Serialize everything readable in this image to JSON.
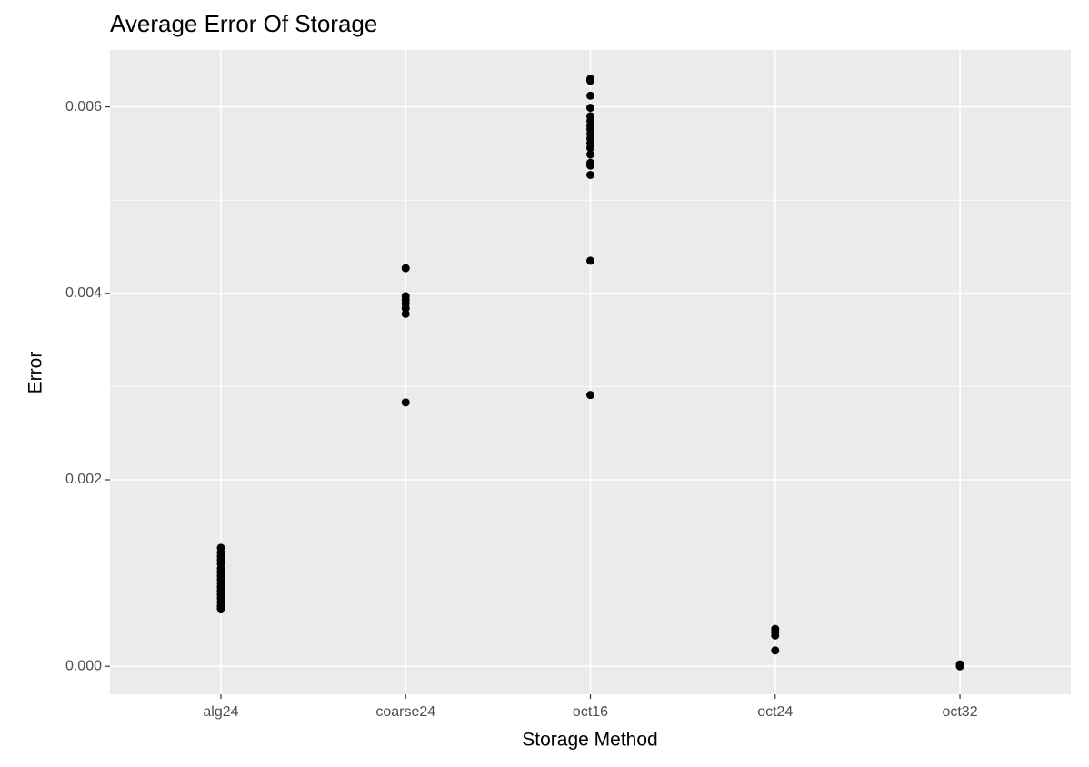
{
  "chart_data": {
    "type": "strip",
    "title": "Average Error Of Storage",
    "x_label": "Storage Method",
    "y_label": "Error",
    "categories": [
      "alg24",
      "coarse24",
      "oct16",
      "oct24",
      "oct32"
    ],
    "values": [
      [
        0.00127,
        0.00122,
        0.00118,
        0.00114,
        0.0011,
        0.00105,
        0.00101,
        0.00097,
        0.00093,
        0.00089,
        0.00085,
        0.00081,
        0.00077,
        0.00073,
        0.00069,
        0.00065,
        0.00062
      ],
      [
        0.00427,
        0.00397,
        0.00393,
        0.00389,
        0.00384,
        0.00378,
        0.00283
      ],
      [
        0.0063,
        0.00628,
        0.00612,
        0.00599,
        0.0059,
        0.00585,
        0.0058,
        0.00576,
        0.00571,
        0.00566,
        0.00561,
        0.00556,
        0.00549,
        0.0054,
        0.00537,
        0.00527,
        0.00435,
        0.00291
      ],
      [
        0.0004,
        0.00037,
        0.00033,
        0.00017
      ],
      [
        2e-05,
        0
      ]
    ],
    "color": "#000000",
    "ylim": [
      -0.0003,
      0.00661
    ],
    "yticks": [
      {
        "value": 0,
        "label": "0.000"
      },
      {
        "value": 0.002,
        "label": "0.002"
      },
      {
        "value": 0.004,
        "label": "0.004"
      },
      {
        "value": 0.006,
        "label": "0.006"
      }
    ],
    "minor_yticks": [
      0.001,
      0.003,
      0.005
    ],
    "grid": true
  }
}
